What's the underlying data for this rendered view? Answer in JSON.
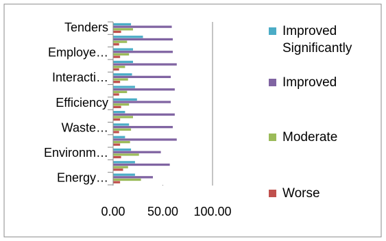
{
  "chart_data": {
    "type": "bar",
    "orientation": "horizontal",
    "categories": [
      "Tenders",
      null,
      "Employe…",
      null,
      "Interacti…",
      null,
      "Efficiency",
      null,
      "Waste…",
      null,
      "Environm…",
      null,
      "Energy…"
    ],
    "series": [
      {
        "name": "Improved Significantly",
        "color": "#4bacc6",
        "values": [
          18,
          30,
          20,
          20,
          19,
          22,
          24,
          12,
          16,
          12,
          18,
          22,
          22
        ]
      },
      {
        "name": "Improved",
        "color": "#8064a2",
        "values": [
          59,
          60,
          60,
          64,
          58,
          62,
          58,
          62,
          60,
          64,
          48,
          57,
          40
        ]
      },
      {
        "name": "Moderate",
        "color": "#9bbb59",
        "values": [
          20,
          14,
          16,
          12,
          15,
          14,
          16,
          20,
          18,
          17,
          26,
          15,
          28
        ]
      },
      {
        "name": "Worse",
        "color": "#c0504d",
        "values": [
          8,
          6,
          7,
          6,
          7,
          6,
          8,
          7,
          6,
          7,
          8,
          10,
          7
        ]
      }
    ],
    "xlim": [
      0,
      100
    ],
    "xticks": [
      {
        "value": 0,
        "label": "0.00"
      },
      {
        "value": 50,
        "label": "50.00"
      },
      {
        "value": 100,
        "label": "100.00"
      }
    ]
  }
}
